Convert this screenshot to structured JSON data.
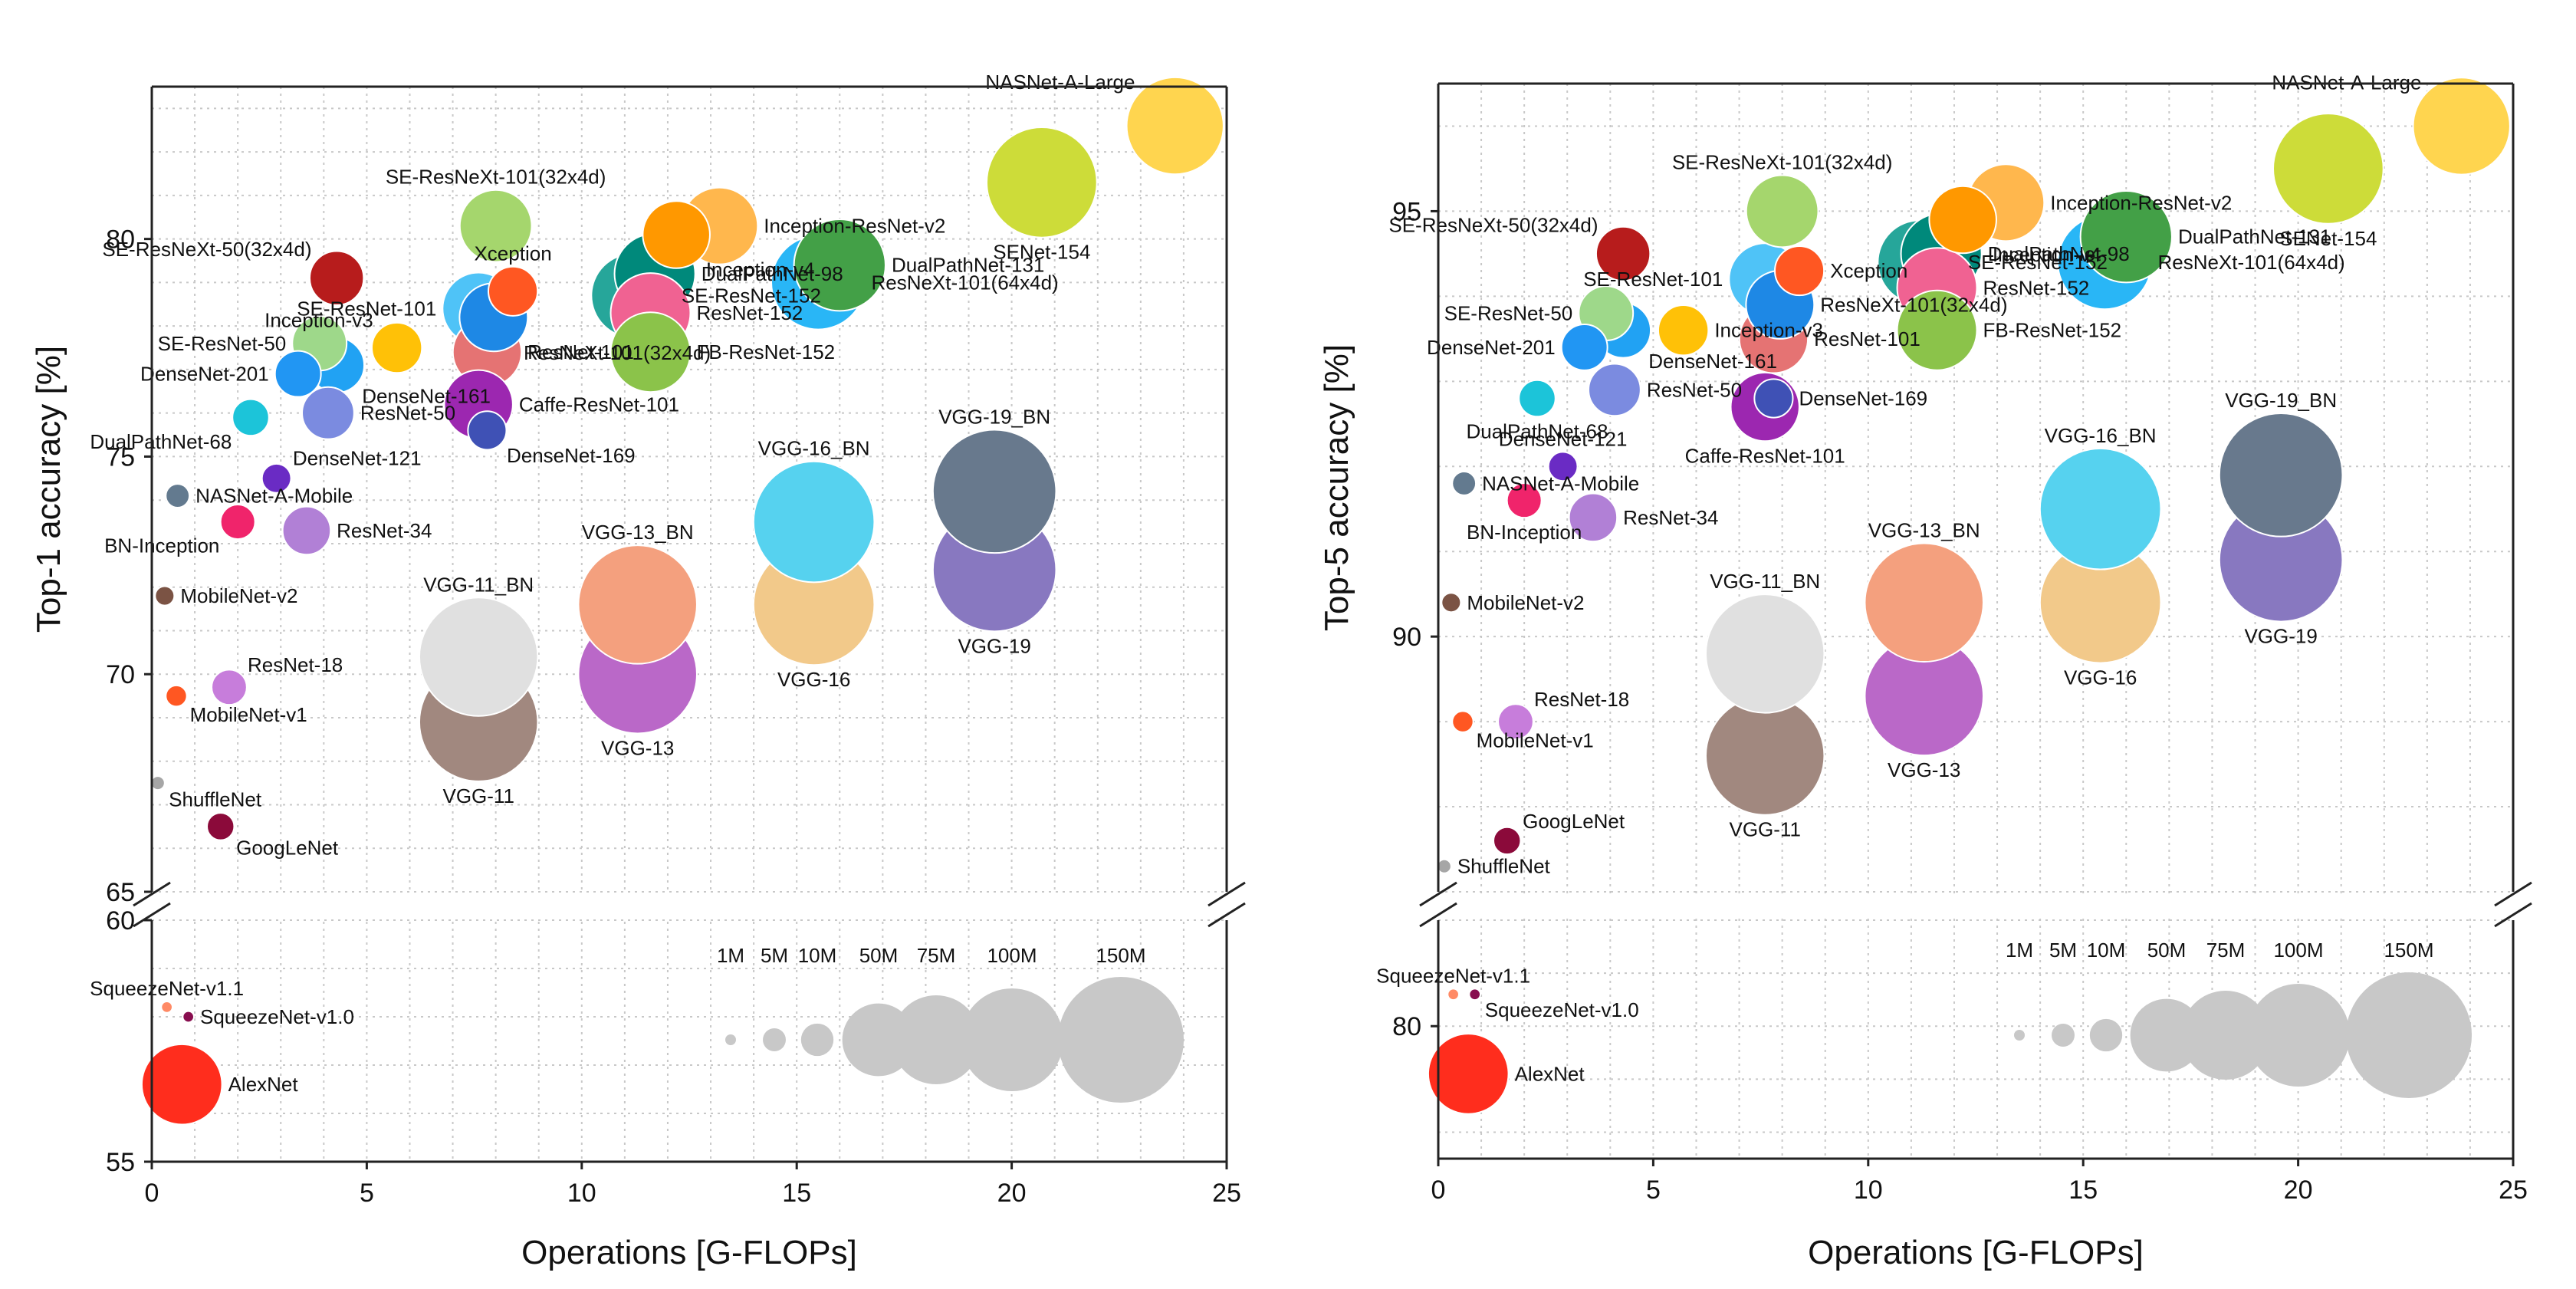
{
  "chart_data": [
    {
      "type": "scatter",
      "id": "top1",
      "xlabel": "Operations [G-FLOPs]",
      "ylabel": "Top-1 accuracy [%]",
      "xlim": [
        0,
        25
      ],
      "xticks": [
        "0",
        "5",
        "10",
        "15",
        "20",
        "25"
      ],
      "upper_ylim": [
        65,
        83.5
      ],
      "upper_yticks": [
        "65",
        "70",
        "75",
        "80"
      ],
      "lower_ylim": [
        55,
        60
      ],
      "lower_yticks": [
        "55",
        "60"
      ],
      "size_legend": {
        "labels": [
          "1M",
          "5M",
          "10M",
          "50M",
          "75M",
          "100M",
          "150M"
        ],
        "params_m": [
          1,
          5,
          10,
          50,
          75,
          100,
          150
        ],
        "color": "#c8c8c8"
      },
      "points": [
        {
          "name": "AlexNet",
          "x": 0.7,
          "y": 56.6,
          "params_m": 61,
          "color": "#ff2d1d",
          "label_pos": "right"
        },
        {
          "name": "SqueezeNet-v1.1",
          "x": 0.35,
          "y": 58.2,
          "params_m": 1.2,
          "color": "#ff8a65",
          "label_pos": "top"
        },
        {
          "name": "SqueezeNet-v1.0",
          "x": 0.85,
          "y": 58.0,
          "params_m": 1.2,
          "color": "#880e4f",
          "label_pos": "right"
        },
        {
          "name": "ShuffleNet",
          "x": 0.14,
          "y": 67.5,
          "params_m": 1.8,
          "color": "#a6a6a6",
          "label_pos": "bottom-right"
        },
        {
          "name": "GoogLeNet",
          "x": 1.6,
          "y": 66.5,
          "params_m": 7,
          "color": "#8b0a3a",
          "label_pos": "bottom-right"
        },
        {
          "name": "MobileNet-v1",
          "x": 0.57,
          "y": 69.5,
          "params_m": 4.2,
          "color": "#ff5722",
          "label_pos": "bottom-right"
        },
        {
          "name": "ResNet-18",
          "x": 1.8,
          "y": 69.7,
          "params_m": 11.7,
          "color": "#c77ddb",
          "label_pos": "top-right"
        },
        {
          "name": "MobileNet-v2",
          "x": 0.3,
          "y": 71.8,
          "params_m": 3.5,
          "color": "#7b5344",
          "label_pos": "right"
        },
        {
          "name": "BN-Inception",
          "x": 2.0,
          "y": 73.5,
          "params_m": 11.3,
          "color": "#f0246b",
          "label_pos": "bottom-left"
        },
        {
          "name": "ResNet-34",
          "x": 3.6,
          "y": 73.3,
          "params_m": 21.8,
          "color": "#b180d6",
          "label_pos": "right"
        },
        {
          "name": "NASNet-A-Mobile",
          "x": 0.6,
          "y": 74.1,
          "params_m": 5.3,
          "color": "#637a8f",
          "label_pos": "right"
        },
        {
          "name": "DenseNet-121",
          "x": 2.9,
          "y": 74.5,
          "params_m": 8,
          "color": "#6a2bc4",
          "label_pos": "top-right"
        },
        {
          "name": "DualPathNet-68",
          "x": 2.3,
          "y": 75.9,
          "params_m": 12.6,
          "color": "#1cc4d9",
          "label_pos": "bottom-left"
        },
        {
          "name": "ResNet-50",
          "x": 4.1,
          "y": 76.0,
          "params_m": 25.6,
          "color": "#7b8be0",
          "label_pos": "right"
        },
        {
          "name": "DenseNet-201",
          "x": 3.4,
          "y": 76.9,
          "params_m": 20,
          "color": "#2196f3",
          "label_pos": "left"
        },
        {
          "name": "DenseNet-161",
          "x": 4.3,
          "y": 77.1,
          "params_m": 28.7,
          "color": "#21a2f3",
          "label_pos": "bottom-right"
        },
        {
          "name": "SE-ResNet-50",
          "x": 3.9,
          "y": 77.6,
          "params_m": 28,
          "color": "#9ed88a",
          "label_pos": "left"
        },
        {
          "name": "Inception-v3",
          "x": 5.7,
          "y": 77.5,
          "params_m": 23.8,
          "color": "#ffc107",
          "label_pos": "top-left"
        },
        {
          "name": "SE-ResNeXt-50(32x4d)",
          "x": 4.3,
          "y": 79.1,
          "params_m": 27.6,
          "color": "#b71c1c",
          "label_pos": "top-left"
        },
        {
          "name": "SE-ResNet-101",
          "x": 7.6,
          "y": 78.4,
          "params_m": 49,
          "color": "#4fc3f7",
          "label_pos": "left"
        },
        {
          "name": "ResNeXt-101(32x4d)",
          "x": 7.95,
          "y": 78.2,
          "params_m": 44,
          "color": "#1e88e5",
          "label_pos": "bottom-right"
        },
        {
          "name": "ResNet-101",
          "x": 7.8,
          "y": 77.4,
          "params_m": 44.5,
          "color": "#e57373",
          "label_pos": "right"
        },
        {
          "name": "Caffe-ResNet-101",
          "x": 7.6,
          "y": 76.2,
          "params_m": 44.5,
          "color": "#9c27b0",
          "label_pos": "right"
        },
        {
          "name": "DenseNet-169",
          "x": 7.8,
          "y": 75.6,
          "params_m": 14,
          "color": "#3f51b5",
          "label_pos": "bottom-right"
        },
        {
          "name": "Xception",
          "x": 8.4,
          "y": 78.8,
          "params_m": 22.9,
          "color": "#ff5722",
          "label_pos": "top"
        },
        {
          "name": "SE-ResNeXt-101(32x4d)",
          "x": 8.0,
          "y": 80.3,
          "params_m": 49,
          "color": "#a5d66d",
          "label_pos": "top"
        },
        {
          "name": "Inception-v4",
          "x": 12.2,
          "y": 80.1,
          "params_m": 42.7,
          "color": "#ff9800",
          "label_pos": "bottom-right"
        },
        {
          "name": "Inception-ResNet-v2",
          "x": 13.2,
          "y": 80.3,
          "params_m": 55.8,
          "color": "#ffb74d",
          "label_pos": "right"
        },
        {
          "name": "DualPathNet-98",
          "x": 11.7,
          "y": 79.2,
          "params_m": 61.6,
          "color": "#00897b",
          "label_pos": "right"
        },
        {
          "name": "SE-ResNet-152",
          "x": 11.2,
          "y": 78.7,
          "params_m": 66.8,
          "color": "#26a69a",
          "label_pos": "right"
        },
        {
          "name": "ResNet-152",
          "x": 11.6,
          "y": 78.3,
          "params_m": 60.2,
          "color": "#f06292",
          "label_pos": "right"
        },
        {
          "name": "FB-ResNet-152",
          "x": 11.6,
          "y": 77.4,
          "params_m": 60.2,
          "color": "#8bc34a",
          "label_pos": "right"
        },
        {
          "name": "DualPathNet-131",
          "x": 16.0,
          "y": 79.4,
          "params_m": 79.3,
          "color": "#43a047",
          "label_pos": "right"
        },
        {
          "name": "ResNeXt-101(64x4d)",
          "x": 15.5,
          "y": 79.0,
          "params_m": 83.5,
          "color": "#29b6f6",
          "label_pos": "right"
        },
        {
          "name": "SENet-154",
          "x": 20.7,
          "y": 81.3,
          "params_m": 115,
          "color": "#cddc39",
          "label_pos": "bottom"
        },
        {
          "name": "NASNet-A-Large",
          "x": 23.8,
          "y": 82.6,
          "params_m": 88.9,
          "color": "#ffd54f",
          "label_pos": "top-left"
        },
        {
          "name": "VGG-11",
          "x": 7.6,
          "y": 68.9,
          "params_m": 132.9,
          "color": "#a1887f",
          "label_pos": "bottom"
        },
        {
          "name": "VGG-11_BN",
          "x": 7.6,
          "y": 70.4,
          "params_m": 132.9,
          "color": "#e0e0e0",
          "label_pos": "top"
        },
        {
          "name": "VGG-13",
          "x": 11.3,
          "y": 70.0,
          "params_m": 133,
          "color": "#ba68c8",
          "label_pos": "bottom"
        },
        {
          "name": "VGG-13_BN",
          "x": 11.3,
          "y": 71.6,
          "params_m": 133,
          "color": "#f4a07e",
          "label_pos": "top"
        },
        {
          "name": "VGG-16",
          "x": 15.4,
          "y": 71.6,
          "params_m": 138.4,
          "color": "#f2c98a",
          "label_pos": "bottom"
        },
        {
          "name": "VGG-16_BN",
          "x": 15.4,
          "y": 73.5,
          "params_m": 138.4,
          "color": "#56d2ef",
          "label_pos": "top"
        },
        {
          "name": "VGG-19",
          "x": 19.6,
          "y": 72.4,
          "params_m": 143.7,
          "color": "#8878c0",
          "label_pos": "bottom"
        },
        {
          "name": "VGG-19_BN",
          "x": 19.6,
          "y": 74.2,
          "params_m": 143.7,
          "color": "#68798d",
          "label_pos": "top"
        }
      ]
    },
    {
      "type": "scatter",
      "id": "top5",
      "xlabel": "Operations [G-FLOPs]",
      "ylabel": "Top-5 accuracy [%]",
      "xlim": [
        0,
        25
      ],
      "xticks": [
        "0",
        "5",
        "10",
        "15",
        "20",
        "25"
      ],
      "upper_ylim": [
        87,
        96.5
      ],
      "upper_yticks": [
        "90",
        "95"
      ],
      "lower_ylim": [
        77.5,
        82
      ],
      "lower_yticks": [
        "80"
      ],
      "size_legend": {
        "labels": [
          "1M",
          "5M",
          "10M",
          "50M",
          "75M",
          "100M",
          "150M"
        ],
        "params_m": [
          1,
          5,
          10,
          50,
          75,
          100,
          150
        ],
        "color": "#c8c8c8"
      },
      "points": [
        {
          "name": "AlexNet",
          "x": 0.7,
          "y": 79.1,
          "params_m": 61,
          "color": "#ff2d1d",
          "label_pos": "right"
        },
        {
          "name": "SqueezeNet-v1.1",
          "x": 0.35,
          "y": 80.6,
          "params_m": 1.2,
          "color": "#ff8a65",
          "label_pos": "top"
        },
        {
          "name": "SqueezeNet-v1.0",
          "x": 0.85,
          "y": 80.6,
          "params_m": 1.2,
          "color": "#880e4f",
          "label_pos": "bottom-right"
        },
        {
          "name": "ShuffleNet",
          "x": 0.14,
          "y": 87.3,
          "params_m": 1.8,
          "color": "#a6a6a6",
          "label_pos": "right"
        },
        {
          "name": "GoogLeNet",
          "x": 1.6,
          "y": 87.6,
          "params_m": 7,
          "color": "#8b0a3a",
          "label_pos": "top-right"
        },
        {
          "name": "MobileNet-v1",
          "x": 0.57,
          "y": 89.0,
          "params_m": 4.2,
          "color": "#ff5722",
          "label_pos": "bottom-right"
        },
        {
          "name": "ResNet-18",
          "x": 1.8,
          "y": 89.0,
          "params_m": 11.7,
          "color": "#c77ddb",
          "label_pos": "top-right"
        },
        {
          "name": "MobileNet-v2",
          "x": 0.3,
          "y": 90.4,
          "params_m": 3.5,
          "color": "#7b5344",
          "label_pos": "right"
        },
        {
          "name": "BN-Inception",
          "x": 2.0,
          "y": 91.6,
          "params_m": 11.3,
          "color": "#f0246b",
          "label_pos": "bottom"
        },
        {
          "name": "ResNet-34",
          "x": 3.6,
          "y": 91.4,
          "params_m": 21.8,
          "color": "#b180d6",
          "label_pos": "right"
        },
        {
          "name": "NASNet-A-Mobile",
          "x": 0.6,
          "y": 91.8,
          "params_m": 5.3,
          "color": "#637a8f",
          "label_pos": "right"
        },
        {
          "name": "DenseNet-121",
          "x": 2.9,
          "y": 92.0,
          "params_m": 8,
          "color": "#6a2bc4",
          "label_pos": "top"
        },
        {
          "name": "DualPathNet-68",
          "x": 2.3,
          "y": 92.8,
          "params_m": 12.6,
          "color": "#1cc4d9",
          "label_pos": "bottom"
        },
        {
          "name": "ResNet-50",
          "x": 4.1,
          "y": 92.9,
          "params_m": 25.6,
          "color": "#7b8be0",
          "label_pos": "right"
        },
        {
          "name": "DenseNet-201",
          "x": 3.4,
          "y": 93.4,
          "params_m": 20,
          "color": "#2196f3",
          "label_pos": "left"
        },
        {
          "name": "DenseNet-161",
          "x": 4.3,
          "y": 93.6,
          "params_m": 28.7,
          "color": "#21a2f3",
          "label_pos": "bottom-right"
        },
        {
          "name": "SE-ResNet-50",
          "x": 3.9,
          "y": 93.8,
          "params_m": 28,
          "color": "#9ed88a",
          "label_pos": "left"
        },
        {
          "name": "Inception-v3",
          "x": 5.7,
          "y": 93.6,
          "params_m": 23.8,
          "color": "#ffc107",
          "label_pos": "right"
        },
        {
          "name": "SE-ResNeXt-50(32x4d)",
          "x": 4.3,
          "y": 94.5,
          "params_m": 27.6,
          "color": "#b71c1c",
          "label_pos": "top-left"
        },
        {
          "name": "SE-ResNet-101",
          "x": 7.6,
          "y": 94.2,
          "params_m": 49,
          "color": "#4fc3f7",
          "label_pos": "left"
        },
        {
          "name": "ResNeXt-101(32x4d)",
          "x": 7.95,
          "y": 93.9,
          "params_m": 44,
          "color": "#1e88e5",
          "label_pos": "right"
        },
        {
          "name": "ResNet-101",
          "x": 7.8,
          "y": 93.5,
          "params_m": 44.5,
          "color": "#e57373",
          "label_pos": "right"
        },
        {
          "name": "Caffe-ResNet-101",
          "x": 7.6,
          "y": 92.7,
          "params_m": 44.5,
          "color": "#9c27b0",
          "label_pos": "bottom"
        },
        {
          "name": "DenseNet-169",
          "x": 7.8,
          "y": 92.8,
          "params_m": 14,
          "color": "#3f51b5",
          "label_pos": "right"
        },
        {
          "name": "Xception",
          "x": 8.4,
          "y": 94.3,
          "params_m": 22.9,
          "color": "#ff5722",
          "label_pos": "right"
        },
        {
          "name": "SE-ResNeXt-101(32x4d)",
          "x": 8.0,
          "y": 95.0,
          "params_m": 49,
          "color": "#a5d66d",
          "label_pos": "top"
        },
        {
          "name": "Inception-v4",
          "x": 12.2,
          "y": 94.9,
          "params_m": 42.7,
          "color": "#ff9800",
          "label_pos": "bottom-right"
        },
        {
          "name": "Inception-ResNet-v2",
          "x": 13.2,
          "y": 95.1,
          "params_m": 55.8,
          "color": "#ffb74d",
          "label_pos": "right"
        },
        {
          "name": "DualPathNet-98",
          "x": 11.7,
          "y": 94.5,
          "params_m": 61.6,
          "color": "#00897b",
          "label_pos": "right"
        },
        {
          "name": "SE-ResNet-152",
          "x": 11.2,
          "y": 94.4,
          "params_m": 66.8,
          "color": "#26a69a",
          "label_pos": "right"
        },
        {
          "name": "ResNet-152",
          "x": 11.6,
          "y": 94.1,
          "params_m": 60.2,
          "color": "#f06292",
          "label_pos": "right"
        },
        {
          "name": "FB-ResNet-152",
          "x": 11.6,
          "y": 93.6,
          "params_m": 60.2,
          "color": "#8bc34a",
          "label_pos": "right"
        },
        {
          "name": "DualPathNet-131",
          "x": 16.0,
          "y": 94.7,
          "params_m": 79.3,
          "color": "#43a047",
          "label_pos": "right"
        },
        {
          "name": "ResNeXt-101(64x4d)",
          "x": 15.5,
          "y": 94.4,
          "params_m": 83.5,
          "color": "#29b6f6",
          "label_pos": "right"
        },
        {
          "name": "SENet-154",
          "x": 20.7,
          "y": 95.5,
          "params_m": 115,
          "color": "#cddc39",
          "label_pos": "bottom"
        },
        {
          "name": "NASNet-A-Large",
          "x": 23.8,
          "y": 96.0,
          "params_m": 88.9,
          "color": "#ffd54f",
          "label_pos": "top-left"
        },
        {
          "name": "VGG-11",
          "x": 7.6,
          "y": 88.6,
          "params_m": 132.9,
          "color": "#a1887f",
          "label_pos": "bottom"
        },
        {
          "name": "VGG-11_BN",
          "x": 7.6,
          "y": 89.8,
          "params_m": 132.9,
          "color": "#e0e0e0",
          "label_pos": "top"
        },
        {
          "name": "VGG-13",
          "x": 11.3,
          "y": 89.3,
          "params_m": 133,
          "color": "#ba68c8",
          "label_pos": "bottom"
        },
        {
          "name": "VGG-13_BN",
          "x": 11.3,
          "y": 90.4,
          "params_m": 133,
          "color": "#f4a07e",
          "label_pos": "top"
        },
        {
          "name": "VGG-16",
          "x": 15.4,
          "y": 90.4,
          "params_m": 138.4,
          "color": "#f2c98a",
          "label_pos": "bottom"
        },
        {
          "name": "VGG-16_BN",
          "x": 15.4,
          "y": 91.5,
          "params_m": 138.4,
          "color": "#56d2ef",
          "label_pos": "top"
        },
        {
          "name": "VGG-19",
          "x": 19.6,
          "y": 90.9,
          "params_m": 143.7,
          "color": "#8878c0",
          "label_pos": "bottom"
        },
        {
          "name": "VGG-19_BN",
          "x": 19.6,
          "y": 91.9,
          "params_m": 143.7,
          "color": "#68798d",
          "label_pos": "top"
        }
      ]
    }
  ]
}
